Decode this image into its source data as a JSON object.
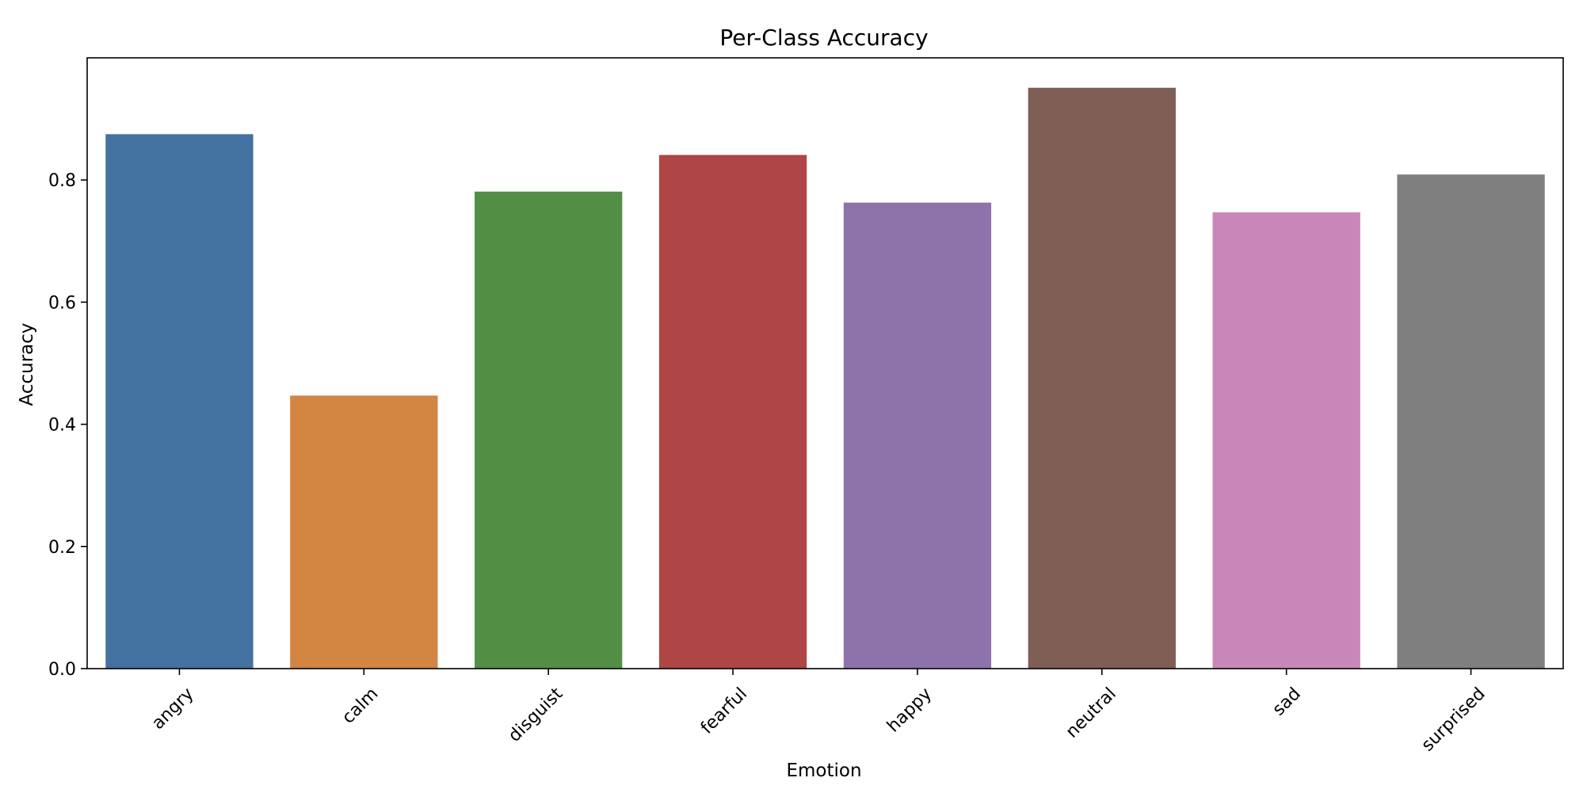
{
  "chart_data": {
    "type": "bar",
    "title": "Per-Class Accuracy",
    "xlabel": "Emotion",
    "ylabel": "Accuracy",
    "categories": [
      "angry",
      "calm",
      "disguist",
      "fearful",
      "happy",
      "neutral",
      "sad",
      "surprised"
    ],
    "values": [
      0.875,
      0.447,
      0.781,
      0.841,
      0.763,
      0.951,
      0.747,
      0.809
    ],
    "colors": [
      "#4472a0",
      "#d38542",
      "#528f45",
      "#ad4645",
      "#8e73ab",
      "#7e5e55",
      "#c987b9",
      "#7f7f7f"
    ],
    "ylim": [
      0,
      1.0
    ],
    "yticks": [
      0.0,
      0.2,
      0.4,
      0.6,
      0.8
    ],
    "ytick_labels": [
      "0.0",
      "0.2",
      "0.4",
      "0.6",
      "0.8"
    ],
    "grid": false,
    "legend": "none"
  }
}
